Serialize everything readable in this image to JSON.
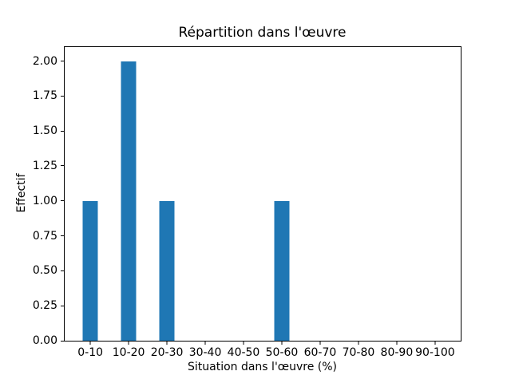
{
  "chart_data": {
    "type": "bar",
    "title": "Répartition dans l'œuvre",
    "xlabel": "Situation dans l'œuvre (%)",
    "ylabel": "Effectif",
    "categories": [
      "0-10",
      "10-20",
      "20-30",
      "30-40",
      "40-50",
      "50-60",
      "60-70",
      "70-80",
      "80-90",
      "90-100"
    ],
    "values": [
      1,
      2,
      1,
      0,
      0,
      1,
      0,
      0,
      0,
      0
    ],
    "ytick_values": [
      0.0,
      0.25,
      0.5,
      0.75,
      1.0,
      1.25,
      1.5,
      1.75,
      2.0
    ],
    "ytick_labels": [
      "0.00",
      "0.25",
      "0.50",
      "0.75",
      "1.00",
      "1.25",
      "1.50",
      "1.75",
      "2.00"
    ],
    "ylim": [
      0,
      2.1
    ],
    "bar_color": "#1f77b4",
    "axis_color": "#000000",
    "grid": false,
    "legend_position": "none"
  }
}
